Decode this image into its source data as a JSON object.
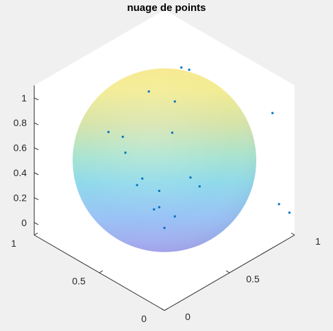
{
  "chart_data": {
    "type": "scatter",
    "title": "nuage de points",
    "projection": "3d-isometric",
    "surface": "sphere",
    "colormap": "parula",
    "surface_alpha": 0.55,
    "grid": false,
    "marker_color": "#0072BD",
    "axis_background": "#ffffff",
    "figure_background": "#f0f0f0",
    "axes": {
      "x": {
        "ticks": [
          "0",
          "0.5",
          "1"
        ],
        "range": [
          0,
          1
        ]
      },
      "y": {
        "ticks": [
          "0",
          "0.5",
          "1"
        ],
        "range": [
          0,
          1
        ]
      },
      "z": {
        "ticks": [
          "0",
          "0.2",
          "0.4",
          "0.6",
          "0.8",
          "1"
        ],
        "range": [
          -0.1,
          1.1
        ]
      }
    },
    "points": [
      {
        "x": 0.98,
        "y": 0.02,
        "z": 0.08
      },
      {
        "x": 0.93,
        "y": 0.05,
        "z": 0.16
      },
      {
        "x": 0.93,
        "y": 0.1,
        "z": 0.86
      },
      {
        "x": 0.5,
        "y": 0.54,
        "z": 0.23
      },
      {
        "x": 0.42,
        "y": 0.15,
        "z": 0.55
      },
      {
        "x": 0.33,
        "y": 0.65,
        "z": 0.7
      },
      {
        "x": 0.58,
        "y": 0.52,
        "z": 0.66
      },
      {
        "x": 0.2,
        "y": 0.2,
        "z": 0.32
      },
      {
        "x": 0.25,
        "y": 0.17,
        "z": 0.4
      },
      {
        "x": 0.54,
        "y": 0.66,
        "z": 0.93
      },
      {
        "x": 0.2,
        "y": 0.28,
        "z": 0.42
      },
      {
        "x": 0.7,
        "y": 0.57,
        "z": 1.08
      },
      {
        "x": 0.64,
        "y": 0.56,
        "z": 0.85
      },
      {
        "x": 0.74,
        "y": 0.55,
        "z": 1.05
      },
      {
        "x": 0.4,
        "y": 0.7,
        "z": 0.5
      },
      {
        "x": 0.32,
        "y": 0.12,
        "z": 0.7
      },
      {
        "x": 0.4,
        "y": 0.44,
        "z": 0.22
      },
      {
        "x": 0.23,
        "y": 0.44,
        "z": 0.5
      },
      {
        "x": 0.07,
        "y": 0.24,
        "z": 0.77
      },
      {
        "x": 0.1,
        "y": 0.53,
        "z": 0.95
      }
    ]
  }
}
